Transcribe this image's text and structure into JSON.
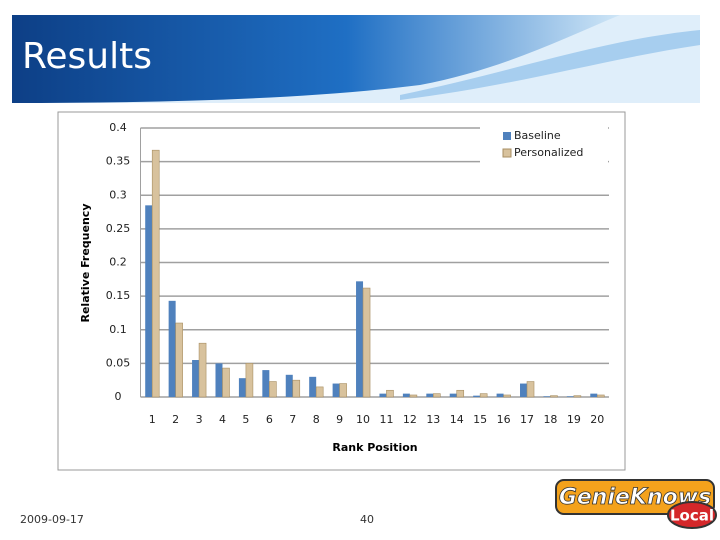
{
  "slide": {
    "title": "Results",
    "date": "2009-09-17",
    "page": "40",
    "logo": {
      "brand": "GenieKnows",
      "sub": "Local"
    }
  },
  "chart_data": {
    "type": "bar",
    "xlabel": "Rank Position",
    "ylabel": "Relative Frequency",
    "categories": [
      "1",
      "2",
      "3",
      "4",
      "5",
      "6",
      "7",
      "8",
      "9",
      "10",
      "11",
      "12",
      "13",
      "14",
      "15",
      "16",
      "17",
      "18",
      "19",
      "20"
    ],
    "series": [
      {
        "name": "Baseline",
        "color": "#4f81bd",
        "values": [
          0.285,
          0.143,
          0.055,
          0.05,
          0.028,
          0.04,
          0.033,
          0.03,
          0.02,
          0.172,
          0.005,
          0.005,
          0.005,
          0.005,
          0.002,
          0.005,
          0.02,
          0.001,
          0.001,
          0.005
        ]
      },
      {
        "name": "Personalized",
        "color": "#d8c29d",
        "values": [
          0.367,
          0.11,
          0.08,
          0.043,
          0.05,
          0.023,
          0.025,
          0.015,
          0.02,
          0.162,
          0.01,
          0.003,
          0.005,
          0.01,
          0.005,
          0.003,
          0.023,
          0.002,
          0.002,
          0.003
        ]
      }
    ],
    "ylim": [
      0,
      0.4
    ],
    "yticks": [
      0,
      0.05,
      0.1,
      0.15,
      0.2,
      0.25,
      0.3,
      0.35,
      0.4
    ],
    "grid": true,
    "legend": "top-right"
  }
}
